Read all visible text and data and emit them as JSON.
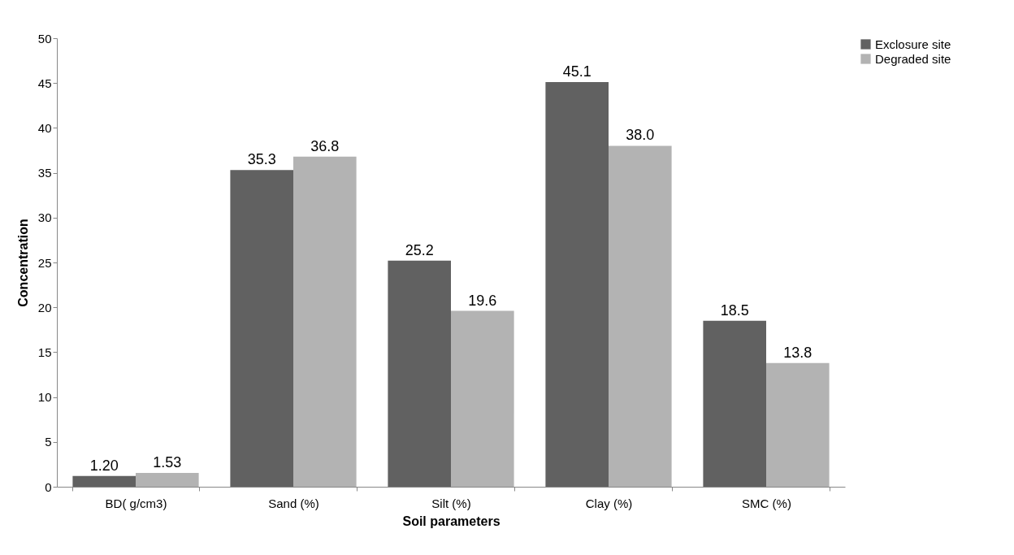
{
  "chart_data": {
    "type": "bar",
    "xlabel": "Soil parameters",
    "ylabel": "Concentration",
    "categories": [
      "BD( g/cm3)",
      "Sand (%)",
      "Silt (%)",
      "Clay (%)",
      "SMC (%)"
    ],
    "series": [
      {
        "name": "Exclosure site",
        "color": "#616161",
        "values": [
          1.2,
          35.3,
          25.2,
          45.1,
          18.5
        ],
        "value_labels": [
          "1.20",
          "35.3",
          "25.2",
          "45.1",
          "18.5"
        ]
      },
      {
        "name": "Degraded site",
        "color": "#b3b3b3",
        "values": [
          1.53,
          36.8,
          19.6,
          38.0,
          13.8
        ],
        "value_labels": [
          "1.53",
          "36.8",
          "19.6",
          "38.0",
          "13.8"
        ]
      }
    ],
    "ylim": [
      0,
      50
    ],
    "yticks": [
      0,
      5,
      10,
      15,
      20,
      25,
      30,
      35,
      40,
      45,
      50
    ],
    "grid": false,
    "legend": "right"
  }
}
